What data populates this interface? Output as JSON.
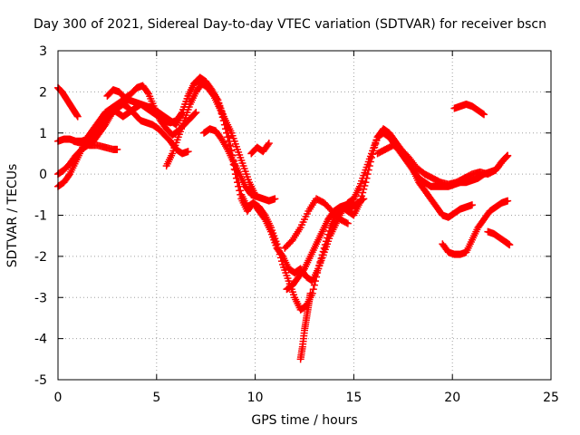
{
  "chart_data": {
    "type": "scatter",
    "title": "Day 300 of 2021, Sidereal Day-to-day VTEC variation (SDTVAR) for receiver bscn",
    "xlabel": "GPS time / hours",
    "ylabel": "SDTVAR / TECUs",
    "xlim": [
      0,
      25
    ],
    "ylim": [
      -5,
      3
    ],
    "x_ticks": [
      "0",
      "5",
      "10",
      "15",
      "20",
      "25"
    ],
    "y_ticks": [
      "-5",
      "-4",
      "-3",
      "-2",
      "-1",
      "0",
      "1",
      "2",
      "3"
    ],
    "grid": true,
    "marker": "+",
    "color": "#ff0000",
    "series": [
      {
        "x": [
          0.0,
          0.3,
          0.6,
          0.9,
          1.2,
          1.5,
          1.8,
          2.1,
          2.4,
          2.7,
          3.0,
          3.3,
          3.6,
          3.9,
          4.2,
          4.5,
          4.8,
          5.1,
          5.4,
          5.7,
          6.0,
          6.3,
          6.6,
          6.9,
          7.2,
          7.5,
          7.8,
          8.1,
          8.4,
          8.7,
          9.0,
          9.3,
          9.6,
          9.9,
          10.2,
          10.5,
          10.8,
          11.1,
          11.4,
          11.7,
          12.0,
          12.3,
          12.6,
          12.9,
          13.2,
          13.5,
          13.8,
          14.1,
          14.4,
          14.7,
          15.0,
          15.3,
          15.6,
          15.9,
          16.2,
          16.5,
          16.8,
          17.1,
          17.4,
          17.7,
          18.0,
          18.3,
          18.6,
          18.9,
          19.2,
          19.5,
          19.8,
          20.1,
          20.4,
          20.7,
          21.0,
          21.3,
          21.6,
          21.9,
          22.2,
          22.5,
          22.8
        ],
        "y": [
          -0.3,
          -0.2,
          0.0,
          0.3,
          0.6,
          0.9,
          1.1,
          1.3,
          1.5,
          1.6,
          1.7,
          1.8,
          1.8,
          1.75,
          1.7,
          1.6,
          1.5,
          1.4,
          1.3,
          1.25,
          1.3,
          1.5,
          1.9,
          2.2,
          2.3,
          2.2,
          2.0,
          1.8,
          1.4,
          0.8,
          0.1,
          -0.5,
          -0.8,
          -0.7,
          -0.8,
          -1.0,
          -1.3,
          -1.7,
          -2.2,
          -2.6,
          -3.0,
          -3.3,
          -3.2,
          -2.9,
          -2.3,
          -1.8,
          -1.3,
          -1.0,
          -0.8,
          -0.9,
          -1.0,
          -0.7,
          -0.2,
          0.4,
          0.9,
          1.0,
          0.9,
          0.7,
          0.5,
          0.3,
          0.1,
          -0.1,
          -0.2,
          -0.3,
          -0.3,
          -0.3,
          -0.3,
          -0.25,
          -0.2,
          -0.2,
          -0.15,
          -0.1,
          0.0,
          0.05,
          0.1,
          0.3,
          0.45
        ]
      },
      {
        "x": [
          0.0,
          0.3,
          0.6,
          0.9,
          1.2,
          1.5,
          1.8,
          2.1,
          2.4,
          2.7,
          3.0,
          3.3,
          3.6,
          3.9,
          4.2,
          4.5,
          4.8,
          5.1,
          5.4,
          5.7,
          6.0,
          6.3,
          6.6,
          6.9,
          7.2,
          7.5,
          7.8,
          8.1,
          8.4,
          8.7,
          9.0,
          9.3,
          9.6,
          9.9,
          10.2,
          10.5,
          10.8,
          11.1,
          11.4,
          11.7,
          12.0,
          12.3,
          12.6,
          12.9,
          13.2,
          13.5,
          13.8,
          14.1,
          14.4,
          14.7,
          15.0,
          15.3,
          15.6,
          15.9,
          16.2,
          16.5,
          16.8,
          17.1,
          17.4,
          17.7,
          18.0,
          18.3,
          18.6,
          18.9,
          19.2,
          19.5,
          19.8,
          20.1,
          20.4,
          20.7,
          21.0
        ],
        "y": [
          0.8,
          0.85,
          0.85,
          0.8,
          0.8,
          0.85,
          0.9,
          1.1,
          1.4,
          1.6,
          1.5,
          1.4,
          1.5,
          1.6,
          1.7,
          1.65,
          1.6,
          1.5,
          1.4,
          1.3,
          1.2,
          1.5,
          1.9,
          2.2,
          2.35,
          2.25,
          2.05,
          1.8,
          1.3,
          0.7,
          0.0,
          -0.6,
          -0.9,
          -0.7,
          -0.9,
          -1.1,
          -1.4,
          -1.8,
          -2.0,
          -2.3,
          -2.4,
          -2.3,
          -2.5,
          -2.6,
          -2.3,
          -1.9,
          -1.5,
          -1.2,
          -0.9,
          -0.7,
          -0.6,
          -0.3,
          0.1,
          0.5,
          0.9,
          1.1,
          1.0,
          0.8,
          0.6,
          0.4,
          0.1,
          -0.2,
          -0.4,
          -0.6,
          -0.8,
          -1.0,
          -1.05,
          -0.95,
          -0.85,
          -0.8,
          -0.75
        ]
      },
      {
        "x": [
          0.0,
          0.3,
          0.6,
          0.9,
          1.2,
          1.5,
          1.8,
          2.1,
          2.4,
          2.7,
          3.0,
          3.3,
          3.6,
          3.9,
          4.2,
          4.5,
          4.8,
          5.1,
          5.4,
          5.7,
          6.0,
          6.3,
          6.6
        ],
        "y": [
          0.0,
          0.1,
          0.25,
          0.45,
          0.6,
          0.7,
          0.8,
          1.0,
          1.2,
          1.45,
          1.6,
          1.7,
          1.6,
          1.45,
          1.3,
          1.25,
          1.2,
          1.1,
          0.95,
          0.8,
          0.6,
          0.5,
          0.55
        ]
      },
      {
        "x": [
          0.0,
          0.2,
          0.4,
          0.6,
          0.8,
          1.0
        ],
        "y": [
          2.1,
          2.0,
          1.85,
          1.7,
          1.55,
          1.4
        ]
      },
      {
        "x": [
          0.8,
          1.2,
          1.6,
          2.0,
          2.4,
          2.8,
          3.0
        ],
        "y": [
          0.8,
          0.75,
          0.7,
          0.7,
          0.65,
          0.6,
          0.6
        ]
      },
      {
        "x": [
          2.5,
          2.8,
          3.1,
          3.4,
          3.7,
          4.0,
          4.3,
          4.6,
          4.9,
          5.2,
          5.5,
          5.8,
          6.1,
          6.4,
          6.7,
          7.0
        ],
        "y": [
          1.9,
          2.05,
          2.0,
          1.85,
          1.95,
          2.1,
          2.15,
          1.95,
          1.6,
          1.3,
          1.1,
          0.95,
          1.05,
          1.2,
          1.35,
          1.5
        ]
      },
      {
        "x": [
          5.5,
          5.8,
          6.1,
          6.4,
          6.7,
          7.0,
          7.3,
          7.6,
          7.9,
          8.2,
          8.5,
          8.8,
          9.1,
          9.4,
          9.7,
          10.0
        ],
        "y": [
          0.2,
          0.5,
          0.9,
          1.3,
          1.7,
          2.0,
          2.2,
          2.1,
          1.9,
          1.6,
          1.3,
          1.0,
          0.6,
          0.2,
          -0.2,
          -0.5
        ]
      },
      {
        "x": [
          7.4,
          7.7,
          8.0,
          8.3,
          8.6,
          8.9,
          9.2,
          9.5,
          9.8,
          10.1,
          10.4,
          10.7,
          11.0
        ],
        "y": [
          1.0,
          1.1,
          1.05,
          0.85,
          0.6,
          0.3,
          0.0,
          -0.3,
          -0.5,
          -0.55,
          -0.6,
          -0.65,
          -0.6
        ]
      },
      {
        "x": [
          9.8,
          10.1,
          10.4,
          10.7
        ],
        "y": [
          0.5,
          0.65,
          0.55,
          0.75
        ]
      },
      {
        "x": [
          11.5,
          11.9,
          12.3,
          12.7,
          13.1,
          13.5,
          13.9,
          14.3,
          14.7
        ],
        "y": [
          -1.8,
          -1.6,
          -1.3,
          -0.9,
          -0.6,
          -0.7,
          -0.9,
          -1.1,
          -1.2
        ]
      },
      {
        "x": [
          11.6,
          11.9,
          12.2,
          12.5,
          12.8,
          13.1,
          13.4,
          13.7,
          14.0,
          14.3,
          14.6,
          14.9,
          15.2,
          15.5
        ],
        "y": [
          -2.8,
          -2.7,
          -2.5,
          -2.3,
          -2.0,
          -1.7,
          -1.4,
          -1.1,
          -0.9,
          -0.8,
          -0.75,
          -0.8,
          -0.7,
          -0.6
        ]
      },
      {
        "x": [
          12.3,
          12.4,
          12.5,
          12.6,
          12.7,
          12.8
        ],
        "y": [
          -4.5,
          -4.2,
          -3.8,
          -3.5,
          -3.2,
          -2.9
        ]
      },
      {
        "x": [
          16.2,
          16.6,
          17.0,
          17.4,
          17.8,
          18.2,
          18.6,
          19.0,
          19.4,
          19.8,
          20.2,
          20.6,
          21.0,
          21.4,
          21.8,
          22.2,
          22.6,
          22.8
        ],
        "y": [
          0.5,
          0.6,
          0.7,
          0.6,
          0.4,
          0.15,
          0.0,
          -0.1,
          -0.2,
          -0.25,
          -0.2,
          -0.1,
          0.0,
          0.05,
          0.0,
          0.1,
          0.35,
          0.45
        ]
      },
      {
        "x": [
          19.5,
          19.8,
          20.1,
          20.4,
          20.7,
          21.0,
          21.3,
          21.6,
          21.9,
          22.2,
          22.5,
          22.8
        ],
        "y": [
          -1.7,
          -1.9,
          -1.95,
          -1.95,
          -1.9,
          -1.6,
          -1.3,
          -1.1,
          -0.9,
          -0.8,
          -0.7,
          -0.65
        ]
      },
      {
        "x": [
          20.1,
          20.4,
          20.7,
          21.0,
          21.3,
          21.6
        ],
        "y": [
          1.6,
          1.65,
          1.7,
          1.65,
          1.55,
          1.45
        ]
      },
      {
        "x": [
          21.8,
          22.1,
          22.4,
          22.7,
          22.9
        ],
        "y": [
          -1.4,
          -1.45,
          -1.55,
          -1.65,
          -1.72
        ]
      }
    ]
  }
}
